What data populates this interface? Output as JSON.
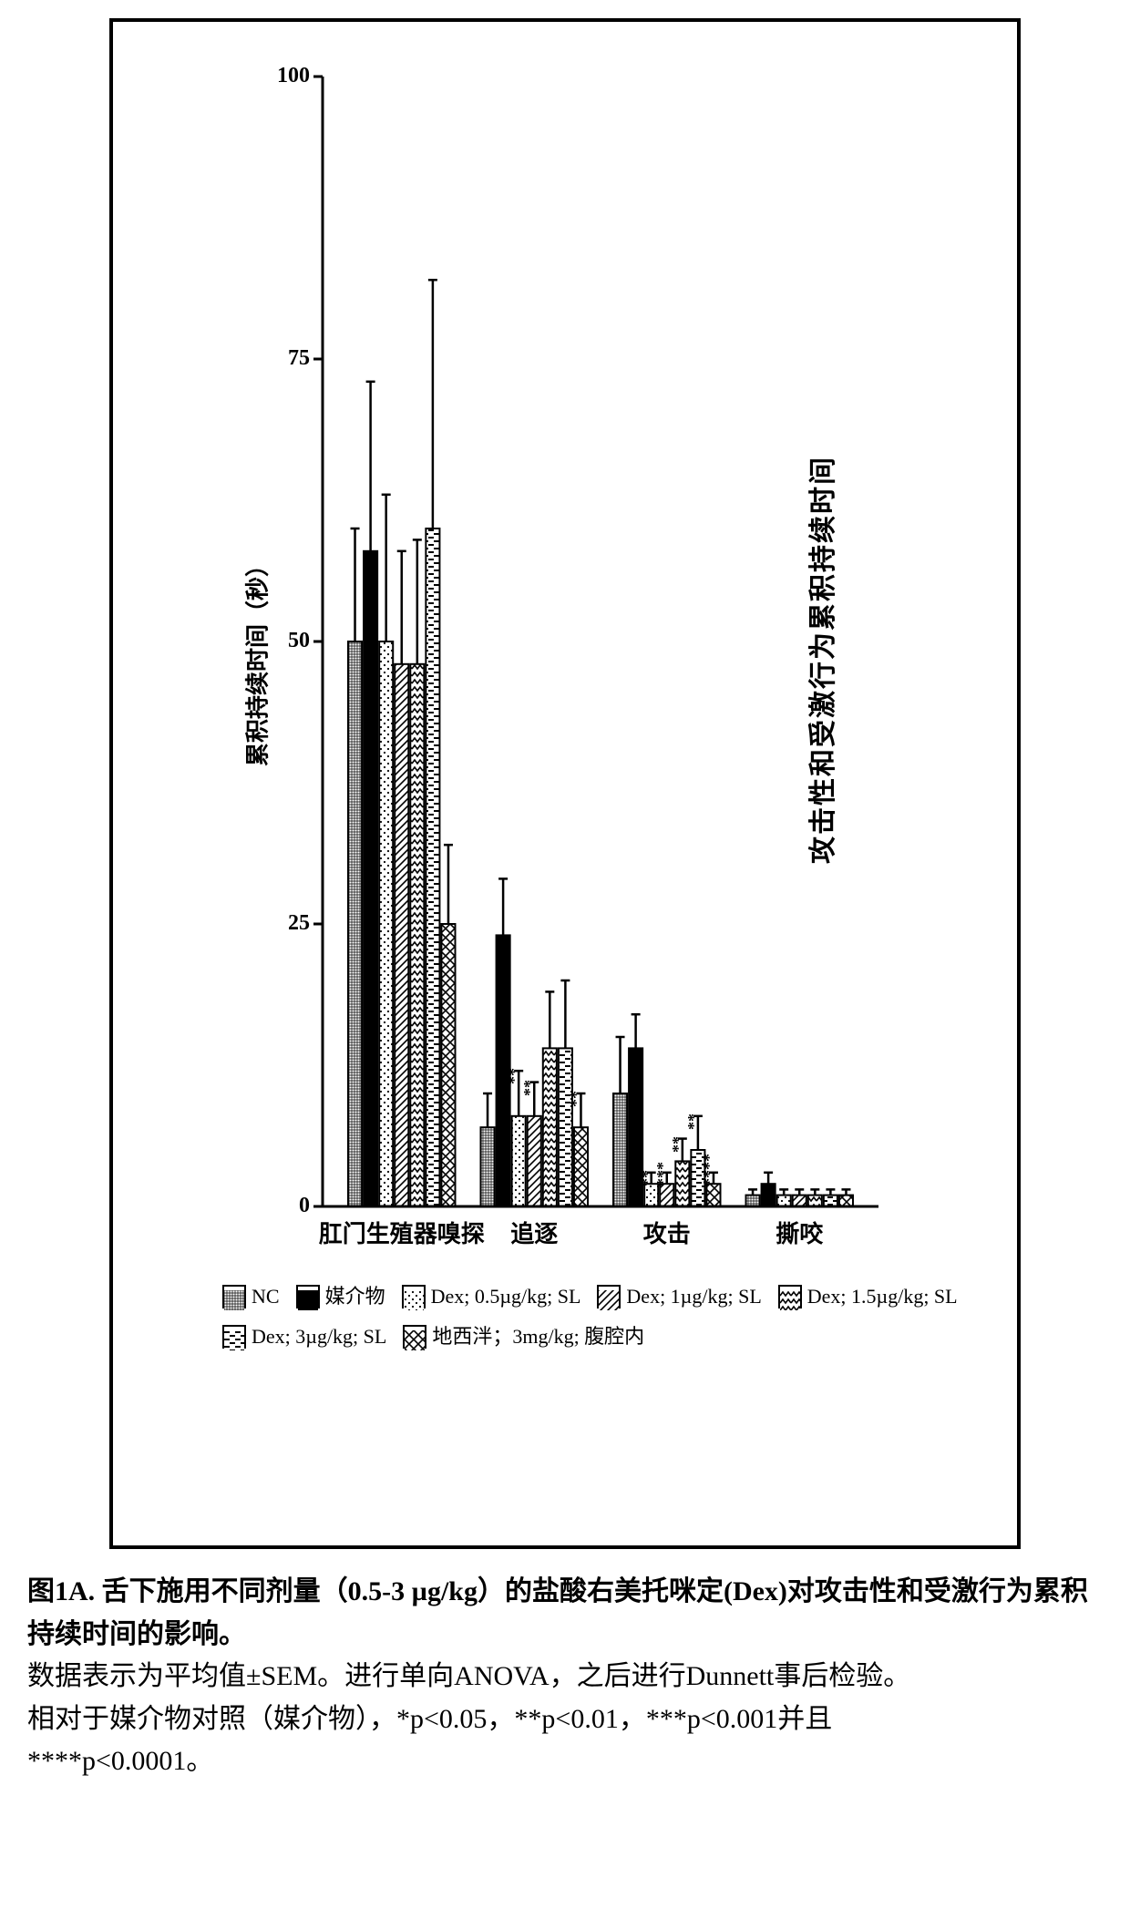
{
  "chart": {
    "type": "bar",
    "title": "攻击性和受激行为累积持续时间",
    "title_fontsize": 30,
    "y_axis_label": "累积持续时间（秒）",
    "label_fontsize": 26,
    "ylim": [
      0,
      100
    ],
    "yticks": [
      0,
      25,
      50,
      75,
      100
    ],
    "background_color": "#ffffff",
    "axis_color": "#000000",
    "bar_border_color": "#000000",
    "bar_border_width": 2,
    "error_cap_width": 10,
    "groups": [
      {
        "label": "肛门生殖器嗅探",
        "bars": [
          {
            "series": 0,
            "value": 50,
            "err": 10,
            "sig": ""
          },
          {
            "series": 1,
            "value": 58,
            "err": 15,
            "sig": ""
          },
          {
            "series": 2,
            "value": 50,
            "err": 13,
            "sig": ""
          },
          {
            "series": 3,
            "value": 48,
            "err": 10,
            "sig": ""
          },
          {
            "series": 4,
            "value": 48,
            "err": 11,
            "sig": ""
          },
          {
            "series": 5,
            "value": 60,
            "err": 22,
            "sig": ""
          },
          {
            "series": 6,
            "value": 25,
            "err": 7,
            "sig": ""
          }
        ]
      },
      {
        "label": "追逐",
        "bars": [
          {
            "series": 0,
            "value": 7,
            "err": 3,
            "sig": ""
          },
          {
            "series": 1,
            "value": 24,
            "err": 5,
            "sig": ""
          },
          {
            "series": 2,
            "value": 8,
            "err": 4,
            "sig": "**"
          },
          {
            "series": 3,
            "value": 8,
            "err": 3,
            "sig": "**"
          },
          {
            "series": 4,
            "value": 14,
            "err": 5,
            "sig": ""
          },
          {
            "series": 5,
            "value": 14,
            "err": 6,
            "sig": ""
          },
          {
            "series": 6,
            "value": 7,
            "err": 3,
            "sig": "**"
          }
        ]
      },
      {
        "label": "攻击",
        "bars": [
          {
            "series": 0,
            "value": 10,
            "err": 5,
            "sig": ""
          },
          {
            "series": 1,
            "value": 14,
            "err": 3,
            "sig": ""
          },
          {
            "series": 2,
            "value": 2,
            "err": 1,
            "sig": "**"
          },
          {
            "series": 3,
            "value": 2,
            "err": 1,
            "sig": "***"
          },
          {
            "series": 4,
            "value": 4,
            "err": 2,
            "sig": "**"
          },
          {
            "series": 5,
            "value": 5,
            "err": 3,
            "sig": "**"
          },
          {
            "series": 6,
            "value": 2,
            "err": 1,
            "sig": "****"
          }
        ]
      },
      {
        "label": "撕咬",
        "bars": [
          {
            "series": 0,
            "value": 1,
            "err": 0.5,
            "sig": ""
          },
          {
            "series": 1,
            "value": 2,
            "err": 1,
            "sig": ""
          },
          {
            "series": 2,
            "value": 1,
            "err": 0.5,
            "sig": ""
          },
          {
            "series": 3,
            "value": 1,
            "err": 0.5,
            "sig": ""
          },
          {
            "series": 4,
            "value": 1,
            "err": 0.5,
            "sig": ""
          },
          {
            "series": 5,
            "value": 1,
            "err": 0.5,
            "sig": ""
          },
          {
            "series": 6,
            "value": 1,
            "err": 0.5,
            "sig": ""
          }
        ]
      }
    ],
    "series": [
      {
        "label": "NC",
        "pattern": "grid",
        "color": "#000000"
      },
      {
        "label": "媒介物",
        "pattern": "solid",
        "color": "#000000"
      },
      {
        "label": "Dex; 0.5µg/kg; SL",
        "pattern": "dots",
        "color": "#000000"
      },
      {
        "label": "Dex; 1µg/kg; SL",
        "pattern": "diag",
        "color": "#000000"
      },
      {
        "label": "Dex; 1.5µg/kg; SL",
        "pattern": "wave",
        "color": "#000000"
      },
      {
        "label": "Dex; 3µg/kg; SL",
        "pattern": "hdash",
        "color": "#000000"
      },
      {
        "label": "地西泮；3mg/kg; 腹腔内",
        "pattern": "crosshatch",
        "color": "#000000"
      }
    ]
  },
  "caption": {
    "line1_bold": "图1A. 舌下施用不同剂量（0.5-3 µg/kg）的盐酸右美托咪定(Dex)对攻击性和受激行为累积持续时间的影响。",
    "line2": "数据表示为平均值±SEM。进行单向ANOVA，之后进行Dunnett事后检验。",
    "line3": "相对于媒介物对照（媒介物），*p<0.05，**p<0.01，***p<0.001并且",
    "line4": "****p<0.0001。"
  }
}
